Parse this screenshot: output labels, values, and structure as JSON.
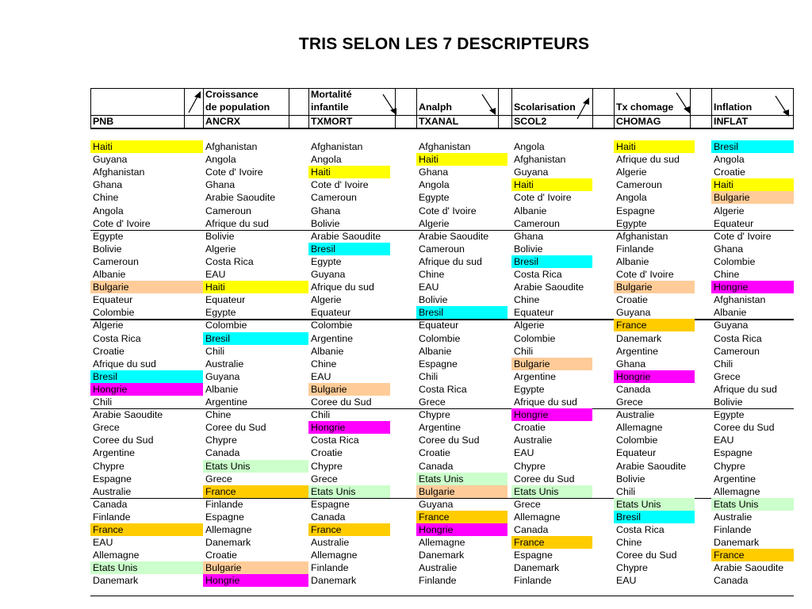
{
  "title": "TRIS SELON LES 7 DESCRIPTEURS",
  "colors": {
    "Haiti": "yellow",
    "Bresil": "cyan",
    "Bulgarie": "peach",
    "Hongrie": "magenta",
    "France": "orange",
    "Etats Unis": "green"
  },
  "columns": [
    {
      "header": "",
      "code": "PNB",
      "sort": "none",
      "countries": [
        "Haiti",
        "Guyana",
        "Afghanistan",
        "Ghana",
        "Chine",
        "Angola",
        "Cote d' Ivoire",
        "Egypte",
        "Bolivie",
        "Cameroun",
        "Albanie",
        "Bulgarie",
        "Equateur",
        "Colombie",
        "Algerie",
        "Costa Rica",
        "Croatie",
        "Afrique du sud",
        "Bresil",
        "Hongrie",
        "Chili",
        "Arabie Saoudite",
        "Grece",
        "Coree du Sud",
        "Argentine",
        "Chypre",
        "Espagne",
        "Australie",
        "Canada",
        "Finlande",
        "France",
        "EAU",
        "Allemagne",
        "Etats Unis",
        "Danemark"
      ]
    },
    {
      "header": "Croissance\nde population",
      "code": "ANCRX",
      "sort": "up",
      "countries": [
        "Afghanistan",
        "Angola",
        "Cote d' Ivoire",
        "Ghana",
        "Arabie Saoudite",
        "Cameroun",
        "Afrique du sud",
        "Bolivie",
        "Algerie",
        "Costa Rica",
        "EAU",
        "Haiti",
        "Equateur",
        "Egypte",
        "Colombie",
        "Bresil",
        "Chili",
        "Australie",
        "Guyana",
        "Albanie",
        "Argentine",
        "Chine",
        "Coree du Sud",
        "Chypre",
        "Canada",
        "Etats Unis",
        "Grece",
        "France",
        "Finlande",
        "Espagne",
        "Allemagne",
        "Danemark",
        "Croatie",
        "Bulgarie",
        "Hongrie"
      ]
    },
    {
      "header": "Mortalité\ninfantile",
      "code": "TXMORT",
      "sort": "down",
      "countries": [
        "Afghanistan",
        "Angola",
        "Haiti",
        "Cote d' Ivoire",
        "Cameroun",
        "Ghana",
        "Bolivie",
        "Arabie Saoudite",
        "Bresil",
        "Egypte",
        "Guyana",
        "Afrique du sud",
        "Algerie",
        "Equateur",
        "Colombie",
        "Argentine",
        "Albanie",
        "Chine",
        "EAU",
        "Bulgarie",
        "Coree du Sud",
        "Chili",
        "Hongrie",
        "Costa Rica",
        "Croatie",
        "Chypre",
        "Grece",
        "Etats Unis",
        "Espagne",
        "Canada",
        "France",
        "Australie",
        "Allemagne",
        "Finlande",
        "Danemark"
      ]
    },
    {
      "header": "Analph",
      "code": "TXANAL",
      "sort": "down",
      "countries": [
        "Afghanistan",
        "Haiti",
        "Ghana",
        "Angola",
        "Egypte",
        "Cote d' Ivoire",
        "Algerie",
        "Arabie Saoudite",
        "Cameroun",
        "Afrique du sud",
        "Chine",
        "EAU",
        "Bolivie",
        "Bresil",
        "Equateur",
        "Colombie",
        "Albanie",
        "Espagne",
        "Chili",
        "Costa Rica",
        "Grece",
        "Chypre",
        "Argentine",
        "Coree du Sud",
        "Croatie",
        "Canada",
        "Etats Unis",
        "Bulgarie",
        "Guyana",
        "France",
        "Hongrie",
        "Allemagne",
        "Danemark",
        "Australie",
        "Finlande"
      ]
    },
    {
      "header": "Scolarisation",
      "code": "SCOL2",
      "sort": "up",
      "countries": [
        "Angola",
        "Afghanistan",
        "Guyana",
        "Haiti",
        "Cote d' Ivoire",
        "Albanie",
        "Cameroun",
        "Ghana",
        "Bolivie",
        "Bresil",
        "Costa Rica",
        "Arabie Saoudite",
        "Chine",
        "Equateur",
        "Algerie",
        "Colombie",
        "Chili",
        "Bulgarie",
        "Argentine",
        "Egypte",
        "Afrique du sud",
        "Hongrie",
        "Croatie",
        "Australie",
        "EAU",
        "Chypre",
        "Coree du Sud",
        "Etats Unis",
        "Grece",
        "Allemagne",
        "Canada",
        "France",
        "Espagne",
        "Danemark",
        "Finlande"
      ]
    },
    {
      "header": "Tx chomage",
      "code": "CHOMAG",
      "sort": "down",
      "countries": [
        "Haiti",
        "Afrique du sud",
        "Algerie",
        "Cameroun",
        "Angola",
        "Espagne",
        "Egypte",
        "Afghanistan",
        "Finlande",
        "Albanie",
        "Cote d' Ivoire",
        "Bulgarie",
        "Croatie",
        "Guyana",
        "France",
        "Danemark",
        "Argentine",
        "Ghana",
        "Hongrie",
        "Canada",
        "Grece",
        "Australie",
        "Allemagne",
        "Colombie",
        "Equateur",
        "Arabie Saoudite",
        "Bolivie",
        "Chili",
        "Etats Unis",
        "Bresil",
        "Costa Rica",
        "Chine",
        "Coree du Sud",
        "Chypre",
        "EAU"
      ]
    },
    {
      "header": "Inflation",
      "code": "INFLAT",
      "sort": "down",
      "countries": [
        "Bresil",
        "Angola",
        "Croatie",
        "Haiti",
        "Bulgarie",
        "Algerie",
        "Equateur",
        "Cote d' Ivoire",
        "Ghana",
        "Colombie",
        "Chine",
        "Hongrie",
        "Afghanistan",
        "Albanie",
        "Guyana",
        "Costa Rica",
        "Cameroun",
        "Chili",
        "Grece",
        "Afrique du sud",
        "Bolivie",
        "Egypte",
        "Coree du Sud",
        "EAU",
        "Espagne",
        "Chypre",
        "Argentine",
        "Allemagne",
        "Etats Unis",
        "Australie",
        "Finlande",
        "Danemark",
        "France",
        "Arabie Saoudite",
        "Canada"
      ]
    }
  ]
}
